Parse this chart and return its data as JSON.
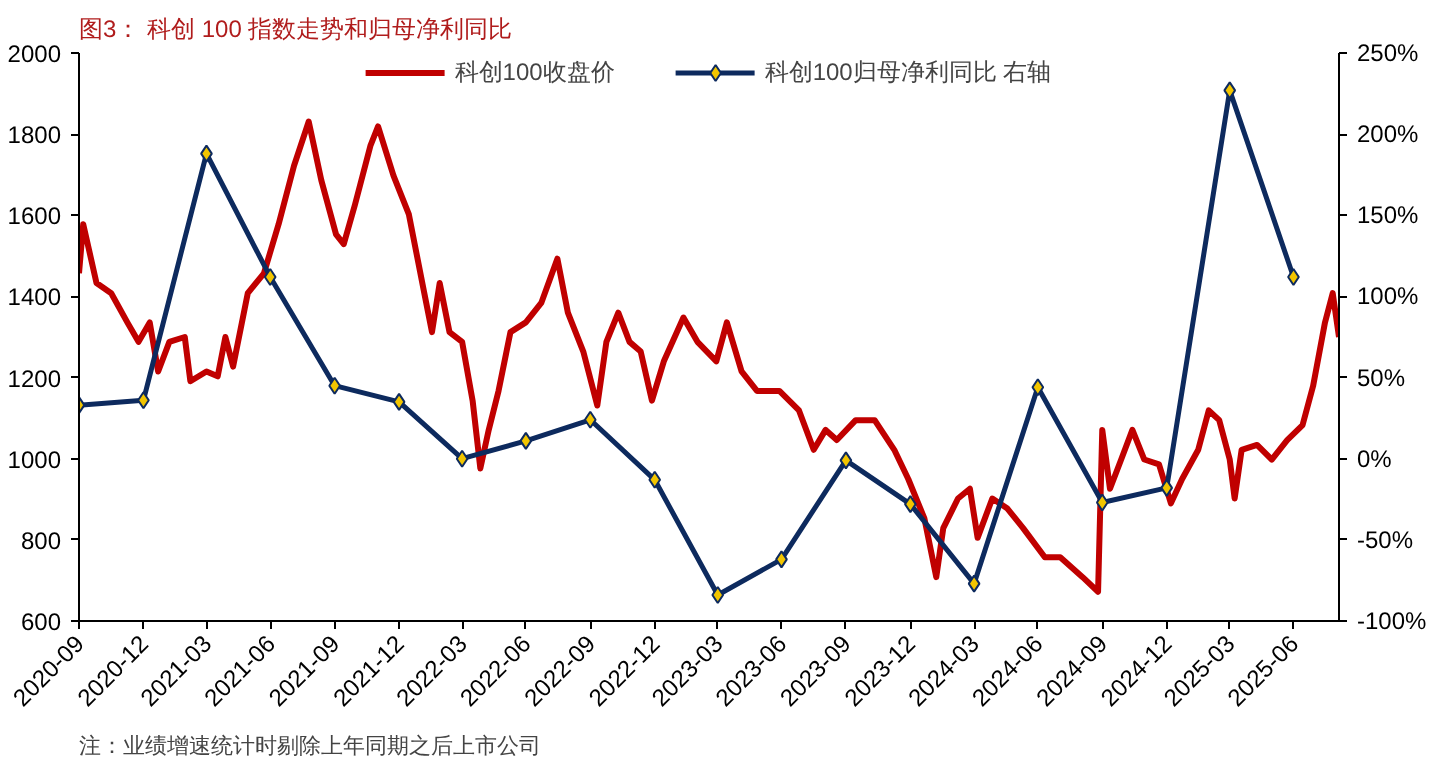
{
  "chart_data": {
    "type": "line",
    "title": "图3：  科创 100 指数走势和归母净利同比",
    "annotations": [
      "注：业绩增速统计时剔除上年同期之后上市公司"
    ],
    "xlim": [
      "2020-09-30",
      "2025-09-03"
    ],
    "xticks": [
      {
        "value": "2020-09-30",
        "label": "2020-09"
      },
      {
        "value": "2020-12-31",
        "label": "2020-12"
      },
      {
        "value": "2021-03-31",
        "label": "2021-03"
      },
      {
        "value": "2021-06-30",
        "label": "2021-06"
      },
      {
        "value": "2021-09-30",
        "label": "2021-09"
      },
      {
        "value": "2021-12-31",
        "label": "2021-12"
      },
      {
        "value": "2022-03-31",
        "label": "2022-03"
      },
      {
        "value": "2022-06-30",
        "label": "2022-06"
      },
      {
        "value": "2022-09-30",
        "label": "2022-09"
      },
      {
        "value": "2022-12-31",
        "label": "2022-12"
      },
      {
        "value": "2023-03-31",
        "label": "2023-03"
      },
      {
        "value": "2023-06-30",
        "label": "2023-06"
      },
      {
        "value": "2023-09-30",
        "label": "2023-09"
      },
      {
        "value": "2023-12-31",
        "label": "2023-12"
      },
      {
        "value": "2024-03-31",
        "label": "2024-03"
      },
      {
        "value": "2024-06-30",
        "label": "2024-06"
      },
      {
        "value": "2024-09-30",
        "label": "2024-09"
      },
      {
        "value": "2024-12-31",
        "label": "2024-12"
      },
      {
        "value": "2025-03-31",
        "label": "2025-03"
      },
      {
        "value": "2025-06-30",
        "label": "2025-06"
      }
    ],
    "ylim": [
      600,
      2000
    ],
    "yticks": [
      600,
      800,
      1000,
      1200,
      1400,
      1600,
      1800,
      2000
    ],
    "y2lim": [
      -100,
      250
    ],
    "y2ticks": [
      {
        "value": -100,
        "label": "-100%"
      },
      {
        "value": -50,
        "label": "-50%"
      },
      {
        "value": 0,
        "label": "0%"
      },
      {
        "value": 50,
        "label": "50%"
      },
      {
        "value": 100,
        "label": "100%"
      },
      {
        "value": 150,
        "label": "150%"
      },
      {
        "value": 200,
        "label": "200%"
      },
      {
        "value": 250,
        "label": "250%"
      }
    ],
    "grid": false,
    "legend": "top",
    "series": [
      {
        "name": "科创100收盘价",
        "color": "#c00000",
        "marker": "none",
        "x": [
          "2020-09-30",
          "2020-10-06",
          "2020-10-14",
          "2020-10-25",
          "2020-11-15",
          "2020-12-08",
          "2020-12-24",
          "2021-01-09",
          "2021-01-21",
          "2021-02-06",
          "2021-02-28",
          "2021-03-08",
          "2021-03-31",
          "2021-04-16",
          "2021-04-27",
          "2021-05-08",
          "2021-05-29",
          "2021-06-21",
          "2021-07-12",
          "2021-08-03",
          "2021-08-24",
          "2021-09-11",
          "2021-10-02",
          "2021-10-13",
          "2021-10-29",
          "2021-11-20",
          "2021-12-01",
          "2021-12-23",
          "2022-01-14",
          "2022-02-05",
          "2022-02-16",
          "2022-02-27",
          "2022-03-13",
          "2022-03-31",
          "2022-04-15",
          "2022-04-26",
          "2022-05-08",
          "2022-05-22",
          "2022-06-08",
          "2022-06-30",
          "2022-07-22",
          "2022-08-14",
          "2022-08-29",
          "2022-09-20",
          "2022-10-10",
          "2022-10-23",
          "2022-11-09",
          "2022-11-25",
          "2022-12-11",
          "2022-12-27",
          "2023-01-13",
          "2023-02-10",
          "2023-03-02",
          "2023-03-29",
          "2023-04-13",
          "2023-05-04",
          "2023-05-26",
          "2023-06-27",
          "2023-07-25",
          "2023-08-15",
          "2023-09-01",
          "2023-09-17",
          "2023-10-14",
          "2023-11-10",
          "2023-12-08",
          "2023-12-28",
          "2024-01-20",
          "2024-02-06",
          "2024-02-16",
          "2024-03-08",
          "2024-03-25",
          "2024-04-05",
          "2024-04-26",
          "2024-05-17",
          "2024-06-09",
          "2024-07-10",
          "2024-08-01",
          "2024-09-02",
          "2024-09-24",
          "2024-09-30",
          "2024-10-11",
          "2024-10-27",
          "2024-11-12",
          "2024-11-29",
          "2024-12-20",
          "2025-01-06",
          "2025-01-22",
          "2025-02-14",
          "2025-03-01",
          "2025-03-16",
          "2025-03-31",
          "2025-04-07",
          "2025-04-17",
          "2025-05-09",
          "2025-05-30",
          "2025-06-21",
          "2025-07-13",
          "2025-07-28",
          "2025-08-14",
          "2025-08-25",
          "2025-09-03"
        ],
        "values": [
          1457,
          1578,
          1517,
          1433,
          1408,
          1336,
          1288,
          1336,
          1215,
          1288,
          1300,
          1191,
          1215,
          1203,
          1300,
          1227,
          1408,
          1457,
          1578,
          1722,
          1831,
          1686,
          1553,
          1529,
          1626,
          1771,
          1819,
          1698,
          1602,
          1408,
          1312,
          1433,
          1312,
          1288,
          1143,
          976,
          1071,
          1167,
          1312,
          1336,
          1384,
          1493,
          1360,
          1264,
          1131,
          1288,
          1360,
          1288,
          1264,
          1143,
          1240,
          1348,
          1288,
          1240,
          1336,
          1215,
          1167,
          1167,
          1119,
          1022,
          1071,
          1046,
          1095,
          1095,
          1022,
          950,
          853,
          708,
          829,
          902,
          926,
          805,
          902,
          878,
          829,
          757,
          757,
          708,
          672,
          1071,
          926,
          998,
          1071,
          998,
          986,
          890,
          950,
          1022,
          1119,
          1095,
          998,
          902,
          1022,
          1034,
          998,
          1046,
          1083,
          1179,
          1336,
          1408,
          1300
        ]
      },
      {
        "name": "科创100归母净利同比 右轴",
        "color": "#0d2a5e",
        "marker": "diamond",
        "axis": "y2",
        "x": [
          "2020-09-30",
          "2020-12-31",
          "2021-03-31",
          "2021-06-30",
          "2021-09-30",
          "2021-12-31",
          "2022-03-31",
          "2022-06-30",
          "2022-09-30",
          "2022-12-31",
          "2023-03-31",
          "2023-06-30",
          "2023-09-30",
          "2023-12-31",
          "2024-03-31",
          "2024-06-30",
          "2024-09-30",
          "2024-12-31",
          "2025-03-31",
          "2025-06-30"
        ],
        "values": [
          33,
          36,
          188,
          112,
          45,
          35,
          0,
          11,
          24,
          -13,
          -84,
          -62,
          -1,
          -28,
          -77,
          44,
          -27,
          -18,
          227,
          112
        ]
      }
    ]
  }
}
